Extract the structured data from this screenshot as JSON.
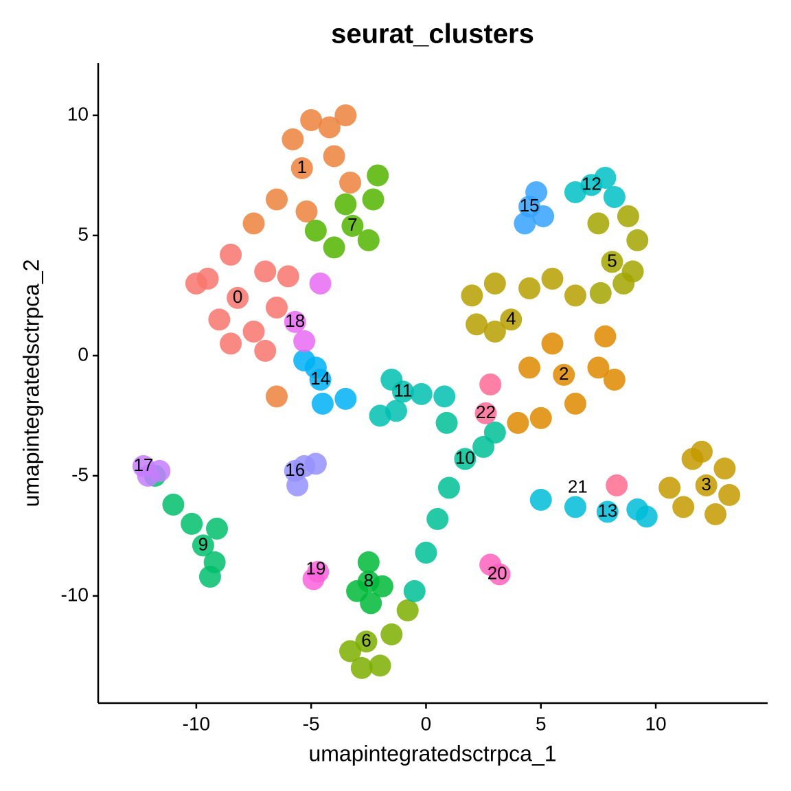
{
  "chart_data": {
    "type": "scatter",
    "title": "seurat_clusters",
    "x_label": "umapintegratedsctrpca_1",
    "y_label": "umapintegratedsctrpca_2",
    "xlim": [
      -14.27,
      14.87
    ],
    "ylim": [
      -14.46,
      12.17
    ],
    "xticks": [
      -10,
      -5,
      0,
      5,
      10
    ],
    "yticks": [
      -10,
      -5,
      0,
      5,
      10
    ],
    "series": [
      {
        "name": "0",
        "color": "#F8766D",
        "label_at": [
          -8.2,
          2.4
        ],
        "x": [
          -8.2,
          -9.5,
          -7,
          -9,
          -7.5,
          -6.5,
          -8.5,
          -10,
          -7,
          -8.5,
          -6
        ],
        "y": [
          2.4,
          3.2,
          3.5,
          1.5,
          1,
          2,
          4.2,
          3,
          0.2,
          0.5,
          3.3
        ]
      },
      {
        "name": "1",
        "color": "#EC823C",
        "label_at": [
          -5.4,
          7.8
        ],
        "x": [
          -5.4,
          -5,
          -3.5,
          -4,
          -6.5,
          -7.5,
          -5.2,
          -3.3,
          -5.8,
          -4.2,
          -6.5
        ],
        "y": [
          7.8,
          9.8,
          10,
          8.3,
          6.5,
          5.5,
          6,
          7.2,
          9,
          9.5,
          -1.7
        ]
      },
      {
        "name": "2",
        "color": "#DF8A00",
        "label_at": [
          6,
          -0.8
        ],
        "x": [
          6,
          5,
          4,
          6.5,
          7.5,
          8.2,
          4.5,
          7.8,
          5.5
        ],
        "y": [
          -0.8,
          -2.6,
          -2.8,
          -2,
          -0.5,
          -1,
          -0.5,
          0.8,
          0.5
        ]
      },
      {
        "name": "3",
        "color": "#C49A00",
        "label_at": [
          12.2,
          -5.4
        ],
        "x": [
          12.2,
          11.6,
          13,
          12.6,
          11.2,
          10.6,
          12,
          13.2
        ],
        "y": [
          -5.4,
          -4.3,
          -4.7,
          -6.6,
          -6.3,
          -5.5,
          -4,
          -5.8
        ]
      },
      {
        "name": "4",
        "color": "#B79F00",
        "label_at": [
          3.7,
          1.5
        ],
        "x": [
          3.7,
          2,
          3,
          4.5,
          5.5,
          3,
          6.5,
          2.2
        ],
        "y": [
          1.5,
          2.5,
          3,
          2.8,
          3.2,
          1,
          2.5,
          1.3
        ]
      },
      {
        "name": "5",
        "color": "#A3A500",
        "label_at": [
          8.1,
          3.9
        ],
        "x": [
          8.1,
          9.2,
          8.8,
          7.5,
          9,
          7.6,
          8.6
        ],
        "y": [
          3.9,
          4.8,
          5.8,
          5.5,
          3.5,
          2.6,
          3
        ]
      },
      {
        "name": "6",
        "color": "#7CAE00",
        "label_at": [
          -2.6,
          -11.9
        ],
        "x": [
          -2.6,
          -3.3,
          -1.5,
          -2.8,
          -0.8,
          -2
        ],
        "y": [
          -11.9,
          -12.3,
          -11.6,
          -13,
          -10.6,
          -12.9
        ]
      },
      {
        "name": "7",
        "color": "#53B400",
        "label_at": [
          -3.2,
          5.4
        ],
        "x": [
          -3.2,
          -2.3,
          -2.5,
          -4,
          -4.8,
          -2.1,
          -3.5
        ],
        "y": [
          5.4,
          6.5,
          4.8,
          4.5,
          5.2,
          7.5,
          6.3
        ]
      },
      {
        "name": "8",
        "color": "#00BA38",
        "label_at": [
          -2.5,
          -9.4
        ],
        "x": [
          -2.5,
          -2.5,
          -3,
          -1.9,
          -2.4
        ],
        "y": [
          -9.4,
          -8.6,
          -9.8,
          -9.6,
          -10.3
        ]
      },
      {
        "name": "9",
        "color": "#00BE6C",
        "label_at": [
          -9.7,
          -7.9
        ],
        "x": [
          -9.7,
          -9.2,
          -10.2,
          -9.1,
          -11,
          -11.8,
          -9.4
        ],
        "y": [
          -7.9,
          -8.6,
          -7,
          -7.2,
          -6.2,
          -5,
          -9.2
        ]
      },
      {
        "name": "10",
        "color": "#00BF96",
        "label_at": [
          1.7,
          -4.3
        ],
        "x": [
          1.7,
          0.9,
          2.5,
          3,
          1,
          0.5,
          0,
          -0.5
        ],
        "y": [
          -4.3,
          -2.8,
          -3.8,
          -3.2,
          -5.5,
          -6.8,
          -8.2,
          -9.8
        ]
      },
      {
        "name": "11",
        "color": "#00C0AF",
        "label_at": [
          -1,
          -1.5
        ],
        "x": [
          -1,
          -1.5,
          -0.2,
          -1.3,
          -2,
          0.8
        ],
        "y": [
          -1.5,
          -1,
          -1.6,
          -2.3,
          -2.5,
          -1.7
        ]
      },
      {
        "name": "12",
        "color": "#00BFC4",
        "label_at": [
          7.2,
          7.1
        ],
        "x": [
          7.2,
          6.5,
          8.2,
          7.8
        ],
        "y": [
          7.1,
          6.8,
          6.6,
          7.4
        ]
      },
      {
        "name": "13",
        "color": "#00BCD8",
        "label_at": [
          7.9,
          -6.5
        ],
        "x": [
          7.9,
          9.2,
          6.5,
          5,
          9.6
        ],
        "y": [
          -6.5,
          -6.4,
          -6.3,
          -6,
          -6.7
        ]
      },
      {
        "name": "14",
        "color": "#00B0F6",
        "label_at": [
          -4.6,
          -1
        ],
        "x": [
          -4.6,
          -5.3,
          -4.5,
          -3.5,
          -4.8
        ],
        "y": [
          -1,
          -0.2,
          -2,
          -1.8,
          -0.5
        ]
      },
      {
        "name": "15",
        "color": "#35A2FF",
        "label_at": [
          4.5,
          6.2
        ],
        "x": [
          4.5,
          4.3,
          4.8,
          5.1
        ],
        "y": [
          6.2,
          5.5,
          6.8,
          5.8
        ]
      },
      {
        "name": "16",
        "color": "#9590FF",
        "label_at": [
          -5.7,
          -4.8
        ],
        "x": [
          -5.7,
          -5.3,
          -5.6,
          -4.8
        ],
        "y": [
          -4.8,
          -4.6,
          -5.4,
          -4.5
        ]
      },
      {
        "name": "17",
        "color": "#C77CFF",
        "label_at": [
          -12.3,
          -4.6
        ],
        "x": [
          -12.3,
          -12.1,
          -11.6
        ],
        "y": [
          -4.6,
          -5,
          -4.8
        ]
      },
      {
        "name": "18",
        "color": "#E76BF3",
        "label_at": [
          -5.7,
          1.4
        ],
        "x": [
          -5.7,
          -5.3,
          -4.6
        ],
        "y": [
          1.4,
          0.6,
          3
        ]
      },
      {
        "name": "19",
        "color": "#FA62DB",
        "label_at": [
          -4.8,
          -8.9
        ],
        "x": [
          -4.9,
          -4.7
        ],
        "y": [
          -9.3,
          -9
        ]
      },
      {
        "name": "20",
        "color": "#FF62BC",
        "label_at": [
          3.1,
          -9.1
        ],
        "x": [
          3.2,
          2.8
        ],
        "y": [
          -9.1,
          -8.7
        ]
      },
      {
        "name": "21",
        "color": "#FF6C91",
        "label_at": [
          6.6,
          -5.5
        ],
        "x": [
          8.3
        ],
        "y": [
          -5.4
        ]
      },
      {
        "name": "22",
        "color": "#FF6A98",
        "label_at": [
          2.6,
          -2.4
        ],
        "x": [
          2.6,
          2.8
        ],
        "y": [
          -2.4,
          -1.2
        ]
      }
    ]
  }
}
